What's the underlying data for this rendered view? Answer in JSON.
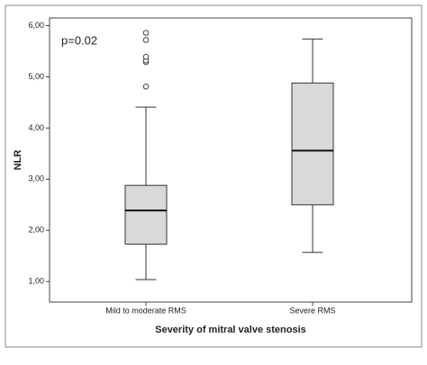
{
  "chart_data": {
    "type": "box",
    "annotation": "p=0.02",
    "x_label": "Severity of mitral valve stenosis",
    "y_label": "NLR",
    "categories": [
      "Mild to moderate RMS",
      "Severe RMS"
    ],
    "boxes": [
      {
        "min": 1.04,
        "q1": 1.73,
        "median": 2.39,
        "q3": 2.88,
        "max": 4.41,
        "outliers": [
          4.81,
          5.29,
          5.32,
          5.39,
          5.72,
          5.86
        ]
      },
      {
        "min": 1.57,
        "q1": 2.5,
        "median": 3.56,
        "q3": 4.88,
        "max": 5.74,
        "outliers": []
      }
    ],
    "color": "#d9d9d9",
    "ylim": [
      0.6,
      6.15
    ],
    "yticks": [
      {
        "value": 1,
        "label": "1,00"
      },
      {
        "value": 2,
        "label": "2,00"
      },
      {
        "value": 3,
        "label": "3,00"
      },
      {
        "value": 4,
        "label": "4,00"
      },
      {
        "value": 5,
        "label": "5,00"
      },
      {
        "value": 6,
        "label": "6,00"
      }
    ]
  }
}
